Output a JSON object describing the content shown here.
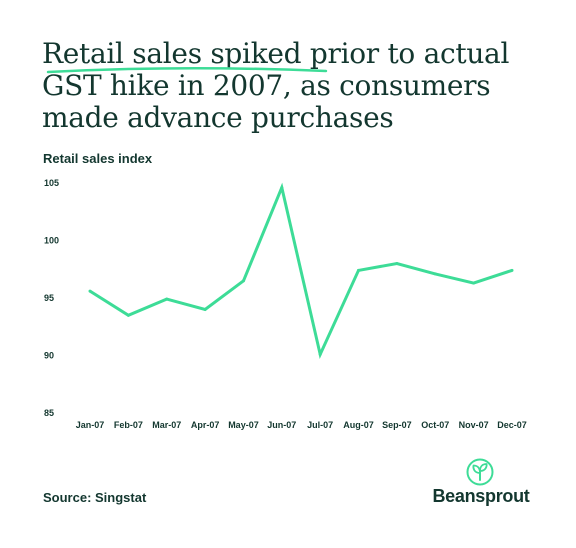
{
  "chart_data": {
    "type": "line",
    "title_lines": [
      "Retail sales spiked prior to actual",
      "GST hike in 2007, as consumers",
      "made advance purchases"
    ],
    "ylabel": "Retail sales index",
    "xlabel": "",
    "categories": [
      "Jan-07",
      "Feb-07",
      "Mar-07",
      "Apr-07",
      "May-07",
      "Jun-07",
      "Jul-07",
      "Aug-07",
      "Sep-07",
      "Oct-07",
      "Nov-07",
      "Dec-07"
    ],
    "values": [
      95.6,
      93.5,
      94.9,
      94.0,
      96.5,
      104.6,
      90.1,
      97.4,
      98.0,
      97.1,
      96.3,
      97.4
    ],
    "ylim": [
      85,
      105
    ],
    "yticks": [
      85,
      90,
      95,
      100,
      105
    ],
    "grid": false,
    "line_color": "#3ddc97"
  },
  "source": "Source: Singstat",
  "brand": {
    "name": "Beansprout",
    "icon": "sprout-icon",
    "color": "#3ddc97"
  },
  "colors": {
    "text": "#13372f",
    "accent": "#3ddc97"
  }
}
